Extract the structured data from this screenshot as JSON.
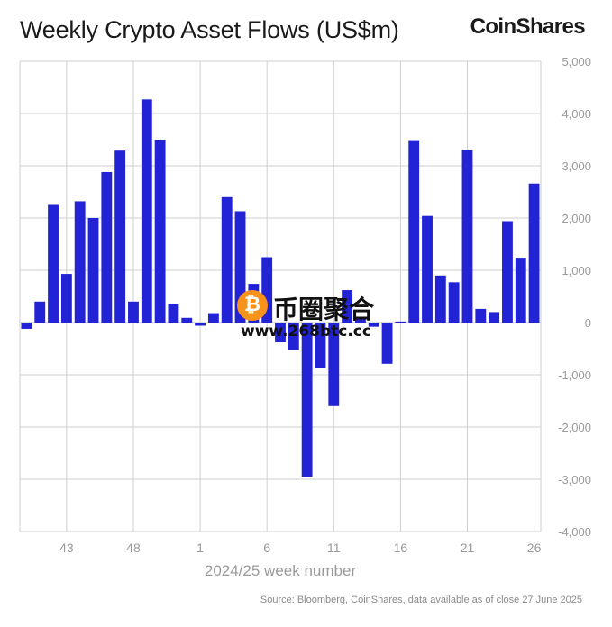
{
  "title": "Weekly Crypto Asset Flows (US$m)",
  "brand": "CoinShares",
  "source": "Source: Bloomberg, CoinShares, data available as of close 27 June 2025",
  "watermark": {
    "chinese": "币圈聚合",
    "url": "www.268btc.cc",
    "icon": "bitcoin-icon"
  },
  "colors": {
    "bar": "#2323d6",
    "grid": "#cfcfcf",
    "tick": "#9a9a9a"
  },
  "chart_data": {
    "type": "bar",
    "xlabel": "2024/25 week number",
    "ylabel": "",
    "ylim": [
      -4000,
      5000
    ],
    "yticks": [
      5000,
      4000,
      3000,
      2000,
      1000,
      0,
      -1000,
      -2000,
      -3000,
      -4000
    ],
    "ytick_labels": [
      "5,000",
      "4,000",
      "3,000",
      "2,000",
      "1,000",
      "0",
      "-1,000",
      "-2,000",
      "-3,000",
      "-4,000"
    ],
    "xtick_labels": [
      "43",
      "48",
      "1",
      "6",
      "11",
      "16",
      "21",
      "26"
    ],
    "xtick_index": [
      3,
      8,
      13,
      18,
      23,
      28,
      33,
      38
    ],
    "grid": true,
    "values": [
      -120,
      400,
      2250,
      930,
      2320,
      2000,
      2880,
      3290,
      400,
      4270,
      3500,
      360,
      90,
      -60,
      180,
      2400,
      2130,
      740,
      1250,
      -380,
      -530,
      -2950,
      -870,
      -1600,
      620,
      60,
      -80,
      -790,
      20,
      3490,
      2040,
      900,
      770,
      3310,
      260,
      200,
      1940,
      1240,
      2660
    ]
  }
}
